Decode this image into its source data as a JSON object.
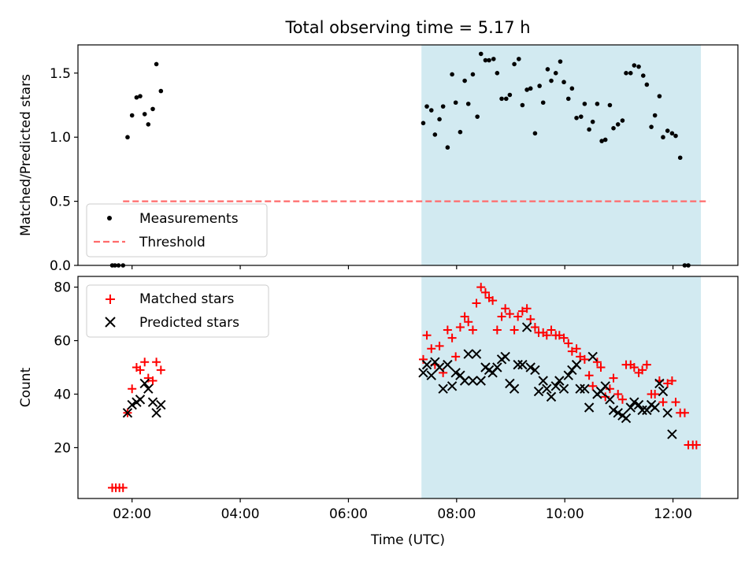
{
  "chart_data": {
    "title": "Total observing time = 5.17 h",
    "shaded_span": [
      "07:21",
      "12:31"
    ],
    "shade_color": "#add8e6",
    "x_axis": {
      "label": "Time (UTC)",
      "range": [
        "01:00",
        "13:12"
      ],
      "ticks": [
        "02:00",
        "04:00",
        "06:00",
        "08:00",
        "10:00",
        "12:00"
      ]
    },
    "panels": [
      {
        "type": "scatter",
        "ylabel": "Matched/Predicted stars",
        "ylim": [
          0,
          1.72
        ],
        "yticks": [
          "0.0",
          "0.5",
          "1.0",
          "1.5"
        ],
        "legend_position": "lower-left",
        "series": [
          {
            "name": "Measurements",
            "marker": "dot",
            "color": "#000000",
            "x": [
              "01:38",
              "01:41",
              "01:45",
              "01:50",
              "01:55",
              "02:00",
              "02:05",
              "02:09",
              "02:14",
              "02:18",
              "02:23",
              "02:27",
              "02:32",
              "02:37",
              "07:23",
              "07:27",
              "07:32",
              "07:36",
              "07:41",
              "07:45",
              "07:50",
              "07:55",
              "07:59",
              "08:04",
              "08:09",
              "08:13",
              "08:18",
              "08:23",
              "08:27",
              "08:32",
              "08:36",
              "08:41",
              "08:45",
              "08:50",
              "08:55",
              "08:59",
              "09:04",
              "09:09",
              "09:13",
              "09:18",
              "09:22",
              "09:27",
              "09:32",
              "09:36",
              "09:41",
              "09:45",
              "09:50",
              "09:55",
              "09:59",
              "10:04",
              "10:08",
              "10:13",
              "10:18",
              "10:22",
              "10:27",
              "10:31",
              "10:36",
              "10:41",
              "10:45",
              "10:50",
              "10:54",
              "10:59",
              "11:04",
              "11:08",
              "11:13",
              "11:17",
              "11:22",
              "11:27",
              "11:31",
              "11:36",
              "11:40",
              "11:45",
              "11:49",
              "11:54",
              "11:59",
              "12:03",
              "12:08",
              "12:13",
              "12:17",
              "12:22",
              "12:26",
              "12:31",
              "12:35",
              "12:40"
            ],
            "y": [
              0,
              0,
              0,
              0,
              1.0,
              1.17,
              1.31,
              1.32,
              1.18,
              1.1,
              1.22,
              1.57,
              1.36,
              null,
              1.11,
              1.24,
              1.21,
              1.02,
              1.14,
              1.24,
              0.92,
              1.49,
              1.27,
              1.04,
              1.44,
              1.26,
              1.49,
              1.16,
              1.65,
              1.6,
              1.6,
              1.61,
              1.5,
              1.3,
              1.3,
              1.33,
              1.57,
              1.61,
              1.25,
              1.37,
              1.38,
              1.03,
              1.4,
              1.27,
              1.53,
              1.44,
              1.5,
              1.59,
              1.43,
              1.3,
              1.38,
              1.15,
              1.16,
              1.26,
              1.06,
              1.12,
              1.26,
              0.97,
              0.98,
              1.25,
              1.07,
              1.1,
              1.13,
              1.5,
              1.5,
              1.56,
              1.55,
              1.48,
              1.41,
              1.08,
              1.17,
              1.32,
              1.0,
              1.05,
              1.03,
              1.01,
              0.84,
              0,
              0,
              null,
              null,
              null,
              null,
              null
            ]
          },
          {
            "name": "Threshold",
            "style": "dashed line",
            "color": "#ff6b6b",
            "x": [
              "01:50",
              "12:40"
            ],
            "y": [
              0.5,
              0.5
            ]
          }
        ]
      },
      {
        "type": "scatter",
        "ylabel": "Count",
        "ylim": [
          1,
          84
        ],
        "yticks": [
          "20",
          "40",
          "60",
          "80"
        ],
        "legend_position": "top-left",
        "series": [
          {
            "name": "Matched stars",
            "marker": "plus",
            "color": "#ff0000",
            "x": [
              "01:38",
              "01:42",
              "01:46",
              "01:50",
              "01:55",
              "02:00",
              "02:05",
              "02:09",
              "02:14",
              "02:18",
              "02:23",
              "02:27",
              "02:32",
              "02:36",
              "07:23",
              "07:27",
              "07:32",
              "07:36",
              "07:41",
              "07:45",
              "07:50",
              "07:55",
              "07:59",
              "08:04",
              "08:09",
              "08:13",
              "08:18",
              "08:22",
              "08:27",
              "08:32",
              "08:36",
              "08:40",
              "08:45",
              "08:50",
              "08:54",
              "08:59",
              "09:04",
              "09:08",
              "09:13",
              "09:18",
              "09:22",
              "09:27",
              "09:31",
              "09:36",
              "09:40",
              "09:45",
              "09:50",
              "09:54",
              "09:59",
              "10:04",
              "10:08",
              "10:13",
              "10:17",
              "10:22",
              "10:27",
              "10:31",
              "10:36",
              "10:40",
              "10:45",
              "10:50",
              "10:54",
              "10:59",
              "11:04",
              "11:08",
              "11:13",
              "11:17",
              "11:22",
              "11:26",
              "11:31",
              "11:36",
              "11:40",
              "11:45",
              "11:49",
              "11:54",
              "11:59",
              "12:03",
              "12:08",
              "12:13",
              "12:17",
              "12:22",
              "12:26",
              "12:31",
              "12:35",
              "12:40"
            ],
            "y": [
              5,
              5,
              5,
              5,
              33,
              42,
              50,
              49,
              52,
              46,
              45,
              52,
              49,
              null,
              53,
              62,
              57,
              51,
              58,
              48,
              64,
              61,
              54,
              65,
              69,
              67,
              64,
              74,
              80,
              78,
              76,
              75,
              64,
              69,
              72,
              70,
              64,
              69,
              71,
              72,
              68,
              65,
              63,
              63,
              62,
              64,
              62,
              62,
              61,
              59,
              56,
              57,
              54,
              53,
              47,
              43,
              52,
              50,
              39,
              42,
              46,
              40,
              38,
              51,
              51,
              50,
              48,
              49,
              51,
              40,
              40,
              45,
              37,
              44,
              45,
              37,
              33,
              33,
              21,
              21,
              21,
              null,
              null,
              null
            ]
          },
          {
            "name": "Predicted stars",
            "marker": "x",
            "color": "#000000",
            "x": [
              "01:55",
              "02:00",
              "02:05",
              "02:09",
              "02:14",
              "02:18",
              "02:23",
              "02:27",
              "02:32",
              "02:36",
              "07:23",
              "07:27",
              "07:32",
              "07:36",
              "07:41",
              "07:45",
              "07:50",
              "07:55",
              "07:59",
              "08:04",
              "08:09",
              "08:13",
              "08:18",
              "08:22",
              "08:27",
              "08:32",
              "08:36",
              "08:40",
              "08:45",
              "08:50",
              "08:54",
              "08:59",
              "09:04",
              "09:08",
              "09:13",
              "09:18",
              "09:22",
              "09:27",
              "09:31",
              "09:36",
              "09:40",
              "09:45",
              "09:50",
              "09:54",
              "09:59",
              "10:04",
              "10:08",
              "10:13",
              "10:17",
              "10:22",
              "10:27",
              "10:31",
              "10:36",
              "10:40",
              "10:45",
              "10:50",
              "10:54",
              "10:59",
              "11:04",
              "11:08",
              "11:13",
              "11:17",
              "11:22",
              "11:26",
              "11:31",
              "11:36",
              "11:40",
              "11:45",
              "11:49",
              "11:54",
              "11:59",
              "12:03",
              "12:08",
              "12:13",
              "12:17",
              "12:22",
              "12:26",
              "12:31"
            ],
            "y": [
              33,
              36,
              37,
              38,
              44,
              42,
              37,
              33,
              36,
              null,
              48,
              51,
              47,
              52,
              50,
              42,
              51,
              43,
              48,
              47,
              45,
              55,
              45,
              55,
              45,
              50,
              49,
              48,
              50,
              53,
              54,
              44,
              42,
              51,
              51,
              65,
              50,
              49,
              41,
              45,
              42,
              39,
              43,
              45,
              42,
              47,
              49,
              51,
              42,
              42,
              35,
              54,
              40,
              41,
              43,
              38,
              34,
              33,
              32,
              31,
              35,
              37,
              36,
              34,
              34,
              36,
              35,
              44,
              41,
              33,
              25,
              null,
              null,
              null,
              null,
              null,
              null,
              null
            ]
          }
        ]
      }
    ]
  }
}
